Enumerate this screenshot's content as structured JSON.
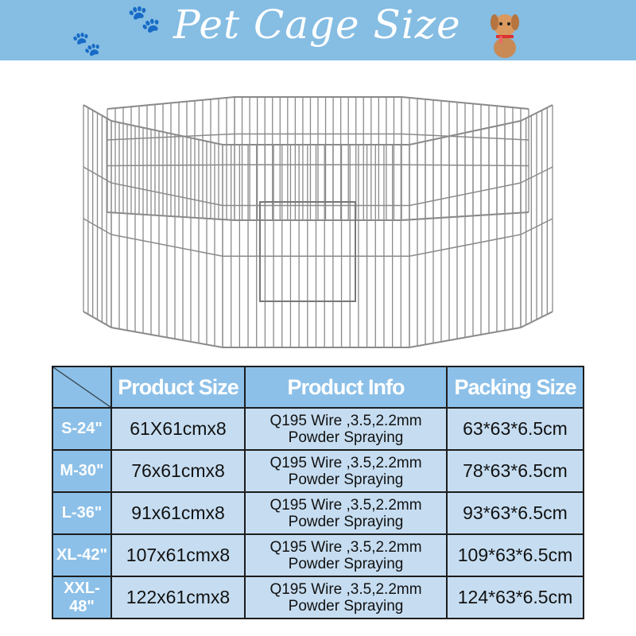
{
  "banner": {
    "title": "Pet Cage Size",
    "background": "#85bde3",
    "icons": [
      "paw-icon",
      "paw-icon",
      "dog-mascot-icon"
    ]
  },
  "table": {
    "headers": [
      "Product Size",
      "Product Info",
      "Packing Size"
    ],
    "rows": [
      {
        "size": "S-24\"",
        "product_size": "61X61cmx8",
        "info_line1": "Q195 Wire ,3.5,2.2mm",
        "info_line2": "Powder Spraying",
        "packing": "63*63*6.5cm"
      },
      {
        "size": "M-30\"",
        "product_size": "76x61cmx8",
        "info_line1": "Q195 Wire ,3.5,2.2mm",
        "info_line2": "Powder Spraying",
        "packing": "78*63*6.5cm"
      },
      {
        "size": "L-36\"",
        "product_size": "91x61cmx8",
        "info_line1": "Q195 Wire ,3.5,2.2mm",
        "info_line2": "Powder Spraying",
        "packing": "93*63*6.5cm"
      },
      {
        "size": "XL-42\"",
        "product_size": "107x61cmx8",
        "info_line1": "Q195 Wire ,3.5,2.2mm",
        "info_line2": "Powder Spraying",
        "packing": "109*63*6.5cm"
      },
      {
        "size": "XXL-48\"",
        "product_size": "122x61cmx8",
        "info_line1": "Q195 Wire ,3.5,2.2mm",
        "info_line2": "Powder Spraying",
        "packing": "124*63*6.5cm"
      }
    ]
  }
}
